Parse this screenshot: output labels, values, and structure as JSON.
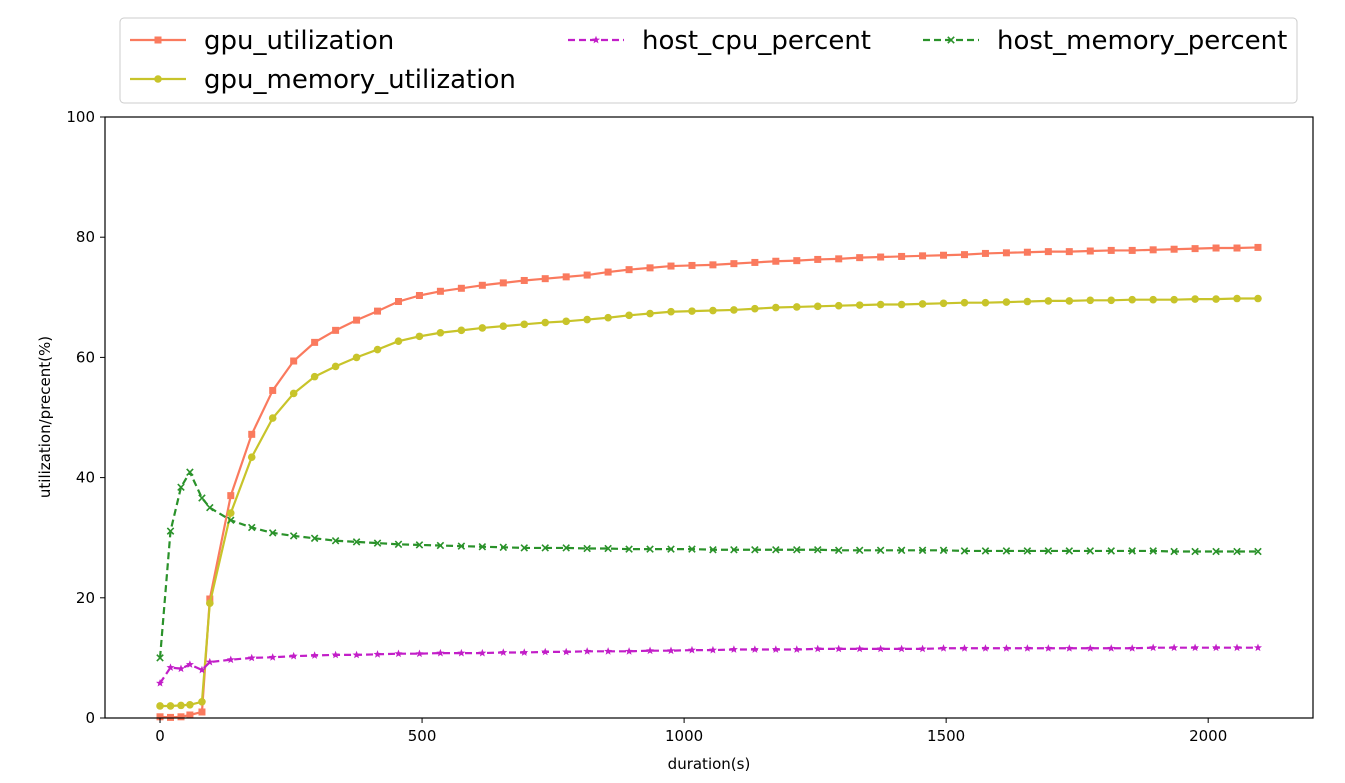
{
  "chart_data": {
    "type": "line",
    "title": "",
    "xlabel": "duration(s)",
    "ylabel": "utilization/precent(%)",
    "xlim": [
      -105,
      2200
    ],
    "ylim": [
      0,
      100
    ],
    "xticks": [
      0,
      500,
      1000,
      1500,
      2000
    ],
    "yticks": [
      0,
      20,
      40,
      60,
      80,
      100
    ],
    "grid": false,
    "legend_position": "top",
    "series": [
      {
        "name": "gpu_utilization",
        "color": "#fa7a5e",
        "linestyle": "solid",
        "marker": "square",
        "points": [
          [
            0,
            0.2
          ],
          [
            20,
            0.1
          ],
          [
            40,
            0.2
          ],
          [
            57,
            0.5
          ],
          [
            80,
            1.0
          ],
          [
            95,
            19.8
          ],
          [
            135,
            37
          ],
          [
            175,
            47.2
          ],
          [
            215,
            54.5
          ],
          [
            255,
            59.4
          ],
          [
            295,
            62.5
          ],
          [
            335,
            64.5
          ],
          [
            375,
            66.2
          ],
          [
            415,
            67.7
          ],
          [
            455,
            69.3
          ],
          [
            495,
            70.3
          ],
          [
            535,
            71
          ],
          [
            575,
            71.5
          ],
          [
            615,
            72
          ],
          [
            655,
            72.4
          ],
          [
            695,
            72.8
          ],
          [
            735,
            73.1
          ],
          [
            775,
            73.4
          ],
          [
            815,
            73.7
          ],
          [
            855,
            74.2
          ],
          [
            895,
            74.6
          ],
          [
            935,
            74.9
          ],
          [
            975,
            75.2
          ],
          [
            1015,
            75.3
          ],
          [
            1055,
            75.4
          ],
          [
            1095,
            75.6
          ],
          [
            1135,
            75.8
          ],
          [
            1175,
            76
          ],
          [
            1215,
            76.1
          ],
          [
            1255,
            76.3
          ],
          [
            1295,
            76.4
          ],
          [
            1335,
            76.6
          ],
          [
            1375,
            76.7
          ],
          [
            1415,
            76.8
          ],
          [
            1455,
            76.9
          ],
          [
            1495,
            77
          ],
          [
            1535,
            77.1
          ],
          [
            1575,
            77.3
          ],
          [
            1615,
            77.4
          ],
          [
            1655,
            77.5
          ],
          [
            1695,
            77.6
          ],
          [
            1735,
            77.6
          ],
          [
            1775,
            77.7
          ],
          [
            1815,
            77.8
          ],
          [
            1855,
            77.8
          ],
          [
            1895,
            77.9
          ],
          [
            1935,
            78
          ],
          [
            1975,
            78.1
          ],
          [
            2015,
            78.2
          ],
          [
            2055,
            78.2
          ],
          [
            2095,
            78.3
          ]
        ]
      },
      {
        "name": "gpu_memory_utilization",
        "color": "#c8c42a",
        "linestyle": "solid",
        "marker": "circle",
        "points": [
          [
            0,
            2
          ],
          [
            20,
            2
          ],
          [
            40,
            2.1
          ],
          [
            57,
            2.2
          ],
          [
            80,
            2.7
          ],
          [
            95,
            19.1
          ],
          [
            135,
            34.1
          ],
          [
            175,
            43.4
          ],
          [
            215,
            49.9
          ],
          [
            255,
            54
          ],
          [
            295,
            56.8
          ],
          [
            335,
            58.5
          ],
          [
            375,
            60
          ],
          [
            415,
            61.3
          ],
          [
            455,
            62.7
          ],
          [
            495,
            63.5
          ],
          [
            535,
            64.1
          ],
          [
            575,
            64.5
          ],
          [
            615,
            64.9
          ],
          [
            655,
            65.2
          ],
          [
            695,
            65.5
          ],
          [
            735,
            65.8
          ],
          [
            775,
            66
          ],
          [
            815,
            66.3
          ],
          [
            855,
            66.6
          ],
          [
            895,
            67
          ],
          [
            935,
            67.3
          ],
          [
            975,
            67.6
          ],
          [
            1015,
            67.7
          ],
          [
            1055,
            67.8
          ],
          [
            1095,
            67.9
          ],
          [
            1135,
            68.1
          ],
          [
            1175,
            68.3
          ],
          [
            1215,
            68.4
          ],
          [
            1255,
            68.5
          ],
          [
            1295,
            68.6
          ],
          [
            1335,
            68.7
          ],
          [
            1375,
            68.8
          ],
          [
            1415,
            68.8
          ],
          [
            1455,
            68.9
          ],
          [
            1495,
            69
          ],
          [
            1535,
            69.1
          ],
          [
            1575,
            69.1
          ],
          [
            1615,
            69.2
          ],
          [
            1655,
            69.3
          ],
          [
            1695,
            69.4
          ],
          [
            1735,
            69.4
          ],
          [
            1775,
            69.5
          ],
          [
            1815,
            69.5
          ],
          [
            1855,
            69.6
          ],
          [
            1895,
            69.6
          ],
          [
            1935,
            69.6
          ],
          [
            1975,
            69.7
          ],
          [
            2015,
            69.7
          ],
          [
            2055,
            69.8
          ],
          [
            2095,
            69.8
          ]
        ]
      },
      {
        "name": "host_cpu_percent",
        "color": "#c21ec8",
        "linestyle": "dashed",
        "marker": "star",
        "points": [
          [
            0,
            5.8
          ],
          [
            20,
            8.4
          ],
          [
            40,
            8.2
          ],
          [
            57,
            8.9
          ],
          [
            80,
            8
          ],
          [
            95,
            9.3
          ],
          [
            135,
            9.7
          ],
          [
            175,
            10
          ],
          [
            215,
            10.1
          ],
          [
            255,
            10.3
          ],
          [
            295,
            10.4
          ],
          [
            335,
            10.5
          ],
          [
            375,
            10.5
          ],
          [
            415,
            10.6
          ],
          [
            455,
            10.7
          ],
          [
            495,
            10.7
          ],
          [
            535,
            10.8
          ],
          [
            575,
            10.8
          ],
          [
            615,
            10.8
          ],
          [
            655,
            10.9
          ],
          [
            695,
            10.9
          ],
          [
            735,
            11
          ],
          [
            775,
            11
          ],
          [
            815,
            11.1
          ],
          [
            855,
            11.1
          ],
          [
            895,
            11.1
          ],
          [
            935,
            11.2
          ],
          [
            975,
            11.2
          ],
          [
            1015,
            11.3
          ],
          [
            1055,
            11.3
          ],
          [
            1095,
            11.4
          ],
          [
            1135,
            11.4
          ],
          [
            1175,
            11.4
          ],
          [
            1215,
            11.4
          ],
          [
            1255,
            11.5
          ],
          [
            1295,
            11.5
          ],
          [
            1335,
            11.5
          ],
          [
            1375,
            11.5
          ],
          [
            1415,
            11.5
          ],
          [
            1455,
            11.5
          ],
          [
            1495,
            11.6
          ],
          [
            1535,
            11.6
          ],
          [
            1575,
            11.6
          ],
          [
            1615,
            11.6
          ],
          [
            1655,
            11.6
          ],
          [
            1695,
            11.6
          ],
          [
            1735,
            11.6
          ],
          [
            1775,
            11.6
          ],
          [
            1815,
            11.6
          ],
          [
            1855,
            11.6
          ],
          [
            1895,
            11.7
          ],
          [
            1935,
            11.7
          ],
          [
            1975,
            11.7
          ],
          [
            2015,
            11.7
          ],
          [
            2055,
            11.7
          ],
          [
            2095,
            11.7
          ]
        ]
      },
      {
        "name": "host_memory_percent",
        "color": "#2a922a",
        "linestyle": "dashed",
        "marker": "x",
        "points": [
          [
            0,
            10
          ],
          [
            20,
            31.1
          ],
          [
            40,
            38.4
          ],
          [
            57,
            40.9
          ],
          [
            80,
            36.6
          ],
          [
            95,
            35
          ],
          [
            135,
            32.9
          ],
          [
            175,
            31.7
          ],
          [
            215,
            30.8
          ],
          [
            255,
            30.3
          ],
          [
            295,
            29.9
          ],
          [
            335,
            29.5
          ],
          [
            375,
            29.3
          ],
          [
            415,
            29.1
          ],
          [
            455,
            28.9
          ],
          [
            495,
            28.8
          ],
          [
            535,
            28.7
          ],
          [
            575,
            28.6
          ],
          [
            615,
            28.5
          ],
          [
            655,
            28.4
          ],
          [
            695,
            28.3
          ],
          [
            735,
            28.3
          ],
          [
            775,
            28.3
          ],
          [
            815,
            28.2
          ],
          [
            855,
            28.2
          ],
          [
            895,
            28.1
          ],
          [
            935,
            28.1
          ],
          [
            975,
            28.1
          ],
          [
            1015,
            28.1
          ],
          [
            1055,
            28
          ],
          [
            1095,
            28
          ],
          [
            1135,
            28
          ],
          [
            1175,
            28
          ],
          [
            1215,
            28
          ],
          [
            1255,
            28
          ],
          [
            1295,
            27.9
          ],
          [
            1335,
            27.9
          ],
          [
            1375,
            27.9
          ],
          [
            1415,
            27.9
          ],
          [
            1455,
            27.9
          ],
          [
            1495,
            27.9
          ],
          [
            1535,
            27.8
          ],
          [
            1575,
            27.8
          ],
          [
            1615,
            27.8
          ],
          [
            1655,
            27.8
          ],
          [
            1695,
            27.8
          ],
          [
            1735,
            27.8
          ],
          [
            1775,
            27.8
          ],
          [
            1815,
            27.8
          ],
          [
            1855,
            27.8
          ],
          [
            1895,
            27.8
          ],
          [
            1935,
            27.7
          ],
          [
            1975,
            27.7
          ],
          [
            2015,
            27.7
          ],
          [
            2055,
            27.7
          ],
          [
            2095,
            27.7
          ]
        ]
      }
    ]
  }
}
